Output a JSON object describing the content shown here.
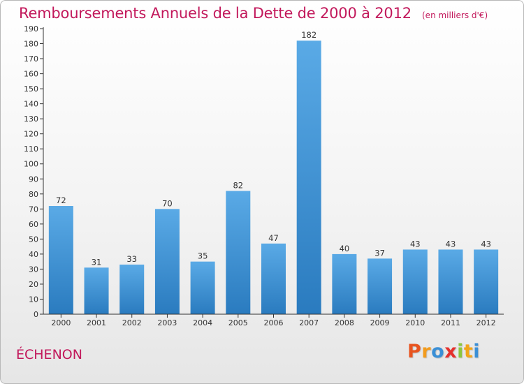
{
  "chart_data": {
    "type": "bar",
    "title": "Remboursements Annuels de la Dette de 2000 à 2012",
    "subtitle": "(en milliers d'€)",
    "categories": [
      "2000",
      "2001",
      "2002",
      "2003",
      "2004",
      "2005",
      "2006",
      "2007",
      "2008",
      "2009",
      "2010",
      "2011",
      "2012"
    ],
    "values": [
      72,
      31,
      33,
      70,
      35,
      82,
      47,
      182,
      40,
      37,
      43,
      43,
      43
    ],
    "data_labels": [
      "72",
      "31",
      "33",
      "70",
      "35",
      "82",
      "47",
      "182",
      "40",
      "37",
      "43",
      "43",
      "43"
    ],
    "ylim": [
      0,
      190
    ],
    "yticks": [
      "0",
      "10",
      "20",
      "30",
      "40",
      "50",
      "60",
      "70",
      "80",
      "90",
      "100",
      "110",
      "120",
      "130",
      "140",
      "150",
      "160",
      "170",
      "180",
      "190"
    ],
    "xlabel": "",
    "ylabel": "",
    "grid": false,
    "bar_color_top": "#5aaae6",
    "bar_color_bottom": "#2a7bbf"
  },
  "commune": "ÉCHENON",
  "brand": {
    "letters": [
      "P",
      "r",
      "o",
      "x",
      "i",
      "t",
      "i"
    ],
    "colors": [
      "#e8541f",
      "#f29b1d",
      "#3a8fd6",
      "#e5302c",
      "#8cc63f",
      "#f2a51a",
      "#3a8fd6"
    ]
  }
}
